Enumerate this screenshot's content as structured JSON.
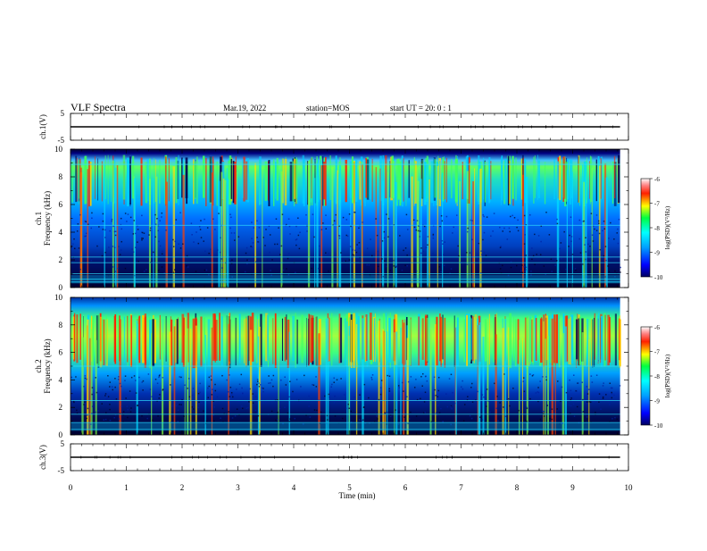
{
  "header": {
    "title": "VLF Spectra",
    "date": "Mar.19, 2022",
    "station": "station=MOS",
    "start": "start UT =  20: 0 : 1"
  },
  "chart_data": [
    {
      "type": "line",
      "name": "ch1-waveform",
      "ylabel": "ch.1(V)",
      "xlim": [
        0,
        10
      ],
      "ylim": [
        -5,
        5
      ],
      "yticks": [
        "5",
        "-5"
      ],
      "series": [
        {
          "x": [
            0,
            9.85
          ],
          "values": [
            0,
            0
          ]
        }
      ]
    },
    {
      "type": "heatmap",
      "name": "ch1-spectrogram",
      "ylabel": "ch.1\nFrequency (kHz)",
      "xlim": [
        0,
        10
      ],
      "ylim": [
        0,
        10
      ],
      "yticks": [
        "0",
        "2",
        "4",
        "6",
        "8",
        "10"
      ],
      "band_khz": [
        6.5,
        9.2
      ],
      "lines_khz": [
        0.4,
        0.6,
        1.0,
        1.8,
        2.2,
        4.5,
        8.9
      ],
      "colorbar": {
        "label": "log(PSD)(V²/Hz)",
        "range": [
          -10,
          -6
        ],
        "ticks": [
          "-6",
          "-7",
          "-8",
          "-9",
          "-10"
        ]
      }
    },
    {
      "type": "heatmap",
      "name": "ch2-spectrogram",
      "ylabel": "ch.2\nFrequency (kHz)",
      "xlim": [
        0,
        10
      ],
      "ylim": [
        0,
        10
      ],
      "yticks": [
        "0",
        "2",
        "4",
        "6",
        "8",
        "10"
      ],
      "band_khz": [
        5.5,
        8.5
      ],
      "lines_khz": [
        0.4,
        0.9,
        1.5,
        2.5,
        5.0
      ],
      "colorbar": {
        "label": "log(PSD)(V²/Hz)",
        "range": [
          -10,
          -6
        ],
        "ticks": [
          "-6",
          "-7",
          "-8",
          "-9",
          "-10"
        ]
      }
    },
    {
      "type": "line",
      "name": "ch3-waveform",
      "ylabel": "ch.3(V)",
      "xlabel": "Time  (min)",
      "xlim": [
        0,
        10
      ],
      "ylim": [
        -5,
        5
      ],
      "yticks": [
        "5",
        "-5"
      ],
      "xticks": [
        "0",
        "1",
        "2",
        "3",
        "4",
        "5",
        "6",
        "7",
        "8",
        "9",
        "10"
      ],
      "series": [
        {
          "x": [
            0,
            9.85
          ],
          "values": [
            0,
            0
          ]
        }
      ]
    }
  ]
}
